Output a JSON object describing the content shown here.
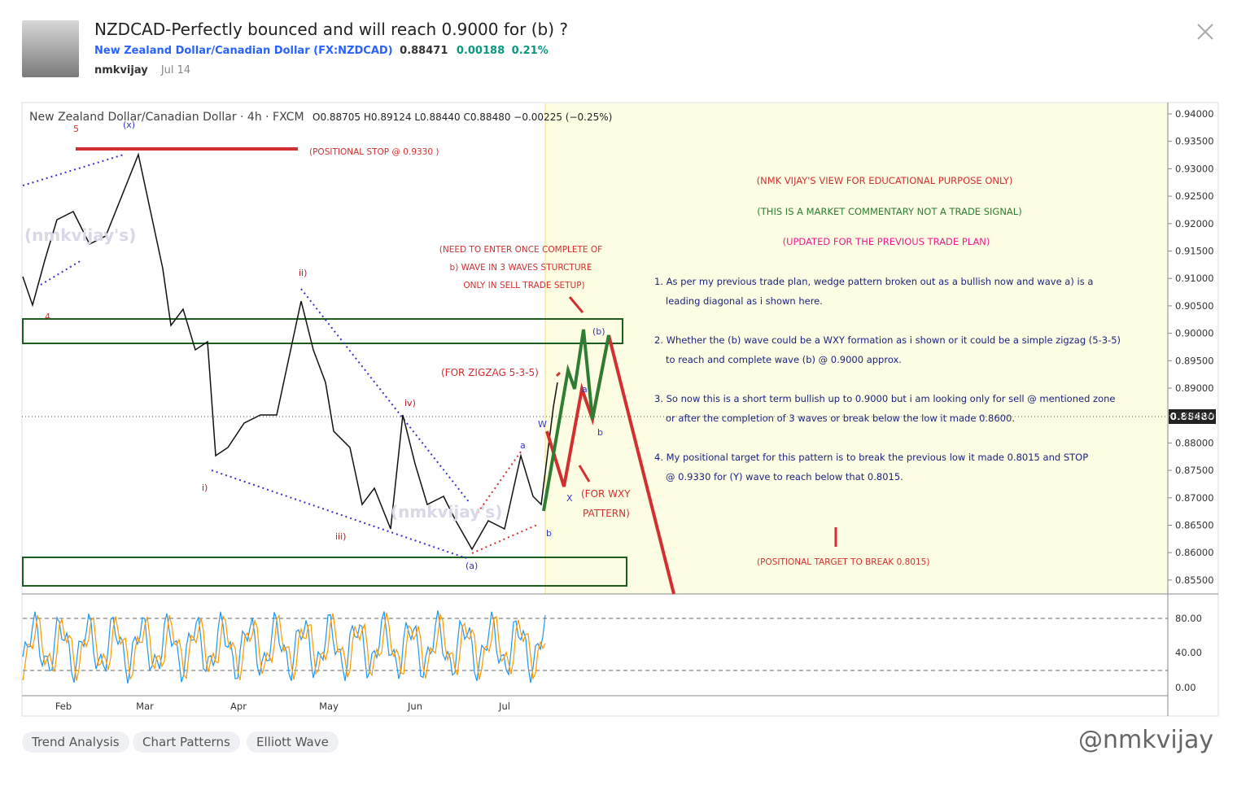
{
  "header": {
    "title": "NZDCAD-Perfectly bounced and will reach 0.9000 for (b) ?",
    "symbol_name": "New Zealand Dollar/Canadian Dollar",
    "symbol_code": "(FX:NZDCAD)",
    "price": "0.88471",
    "change": "0.00188",
    "change_pct": "0.21%",
    "author": "nmkvijay",
    "date": "Jul 14"
  },
  "chart": {
    "legend_name": "New Zealand Dollar/Canadian Dollar · 4h · FXCM",
    "legend_ohlc": "O0.88705 H0.89124 L0.88440 C0.88480 −0.00225 (−0.25%)",
    "price_ticks": [
      "0.94000",
      "0.93500",
      "0.93000",
      "0.92500",
      "0.92000",
      "0.91500",
      "0.91000",
      "0.90500",
      "0.90000",
      "0.89500",
      "0.89000",
      "0.88500",
      "0.88000",
      "0.87500",
      "0.87000",
      "0.86500",
      "0.86000",
      "0.85500"
    ],
    "last_price": "0.88480",
    "osc_ticks": [
      "80.00",
      "40.00",
      "0.00"
    ],
    "time_ticks": [
      "Feb",
      "Mar",
      "Apr",
      "May",
      "Jun",
      "Jul"
    ],
    "waves": {
      "w5": "5",
      "x": "(x)",
      "w4": "4",
      "i": "i)",
      "ii": "ii)",
      "iii": "iii)",
      "iv": "iv)",
      "a_low": "(a)",
      "a": "a",
      "b": "b",
      "w": "W",
      "X": "X",
      "a2": "a",
      "b2": "b",
      "b_top": "(b)"
    },
    "watermark_chart": "(nmkvijay's)",
    "stop": "(POSITIONAL STOP @ 0.9330 )",
    "need": [
      "(NEED TO ENTER ONCE COMPLETE OF",
      "b) WAVE IN 3 WAVES STURCTURE",
      "ONLY IN SELL TRADE SETUP)"
    ],
    "zigzag": "(FOR ZIGZAG 5-3-5)",
    "wxy": [
      "(FOR WXY",
      "PATTERN)"
    ],
    "view": "(NMK VIJAY'S VIEW FOR EDUCATIONAL PURPOSE ONLY)",
    "commentary": "(THIS IS A MARKET COMMENTARY NOT A TRADE SIGNAL)",
    "updated": "(UPDATED FOR THE PREVIOUS TRADE PLAN)",
    "notes": [
      "1. As per my previous trade plan, wedge pattern broken out as a bullish now and wave a) is a",
      "leading diagonal as i shown here.",
      "2. Whether the (b) wave could be a WXY formation as i shown or it could be a simple zigzag (5-3-5)",
      "to reach and complete wave (b) @ 0.9000 approx.",
      "3. So now this is a short term bullish up to 0.9000 but i am looking only for sell @ mentioned zone",
      "or after the completion of 3 waves or break below the low it made 0.8600.",
      "4. My positional target for this pattern is to break the previous low it made 0.8015 and STOP",
      "@ 0.9330 for (Y) wave to reach below that 0.8015."
    ],
    "target": "(POSITIONAL TARGET TO BREAK 0.8015)"
  },
  "tags": [
    "Trend Analysis",
    "Chart Patterns",
    "Elliott Wave"
  ],
  "watermark": "@nmkvijay"
}
